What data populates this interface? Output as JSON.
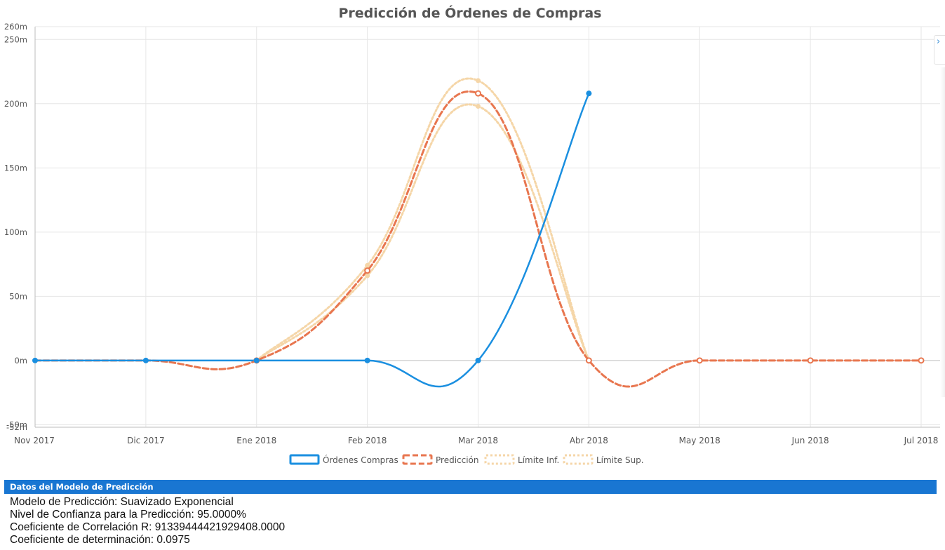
{
  "chart_data": {
    "type": "line",
    "title": "Predicción de Órdenes de Compras",
    "categories": [
      "Nov 2017",
      "Dic 2017",
      "Ene 2018",
      "Feb 2018",
      "Mar 2018",
      "Abr 2018",
      "May 2018",
      "Jun 2018",
      "Jul 2018"
    ],
    "y_ticks": [
      -50,
      0,
      50,
      100,
      150,
      200,
      250
    ],
    "y_tick_labels": [
      "-50m",
      "0m",
      "50m",
      "100m",
      "150m",
      "200m",
      "250m"
    ],
    "y_extra_labels": [
      {
        "value": 260,
        "label": "260m"
      },
      {
        "value": -52,
        "label": "-52m"
      }
    ],
    "ylim": [
      -52,
      260
    ],
    "y_unit": "m",
    "grid": true,
    "legend_position": "bottom",
    "series": [
      {
        "name": "Órdenes Compras",
        "color": "#1a8fe0",
        "style": "solid",
        "marker": "filled",
        "values": [
          0,
          0,
          0,
          0,
          0,
          208,
          null,
          null,
          null
        ]
      },
      {
        "name": "Predicción",
        "color": "#e8764f",
        "style": "dashed",
        "marker": "hollow",
        "values": [
          0,
          0,
          0,
          70,
          208,
          0,
          0,
          0,
          0
        ]
      },
      {
        "name": "Límite Inf.",
        "color": "#f5d6a8",
        "style": "dotted",
        "marker": "none",
        "values": [
          null,
          null,
          0,
          66,
          198,
          0,
          null,
          null,
          null
        ]
      },
      {
        "name": "Límite Sup.",
        "color": "#f5d6a8",
        "style": "dotted",
        "marker": "none",
        "values": [
          null,
          null,
          0,
          74,
          218,
          0,
          null,
          null,
          null
        ]
      }
    ]
  },
  "panel": {
    "header": "Datos del Modelo de Predicción",
    "lines": [
      "Modelo de Predicción: Suavizado Exponencial",
      "Nivel de Confianza para la Predicción: 95.0000%",
      "Coeficiente de Correlación R: 91339444421929408.0000",
      "Coeficiente de determinación: 0.0975"
    ]
  },
  "side_tab_icon": "chevron-right-icon"
}
